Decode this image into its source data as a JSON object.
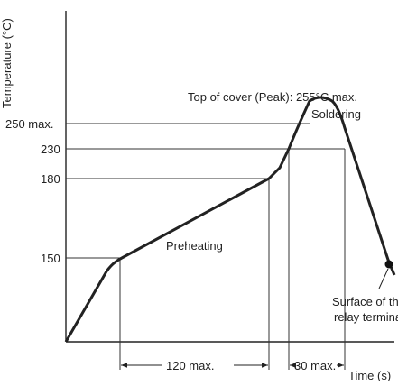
{
  "y_axis_label": "Temperature (°C)",
  "x_axis_label": "Time (s)",
  "temperature_ticks": [
    "250 max.",
    "230",
    "180",
    "150"
  ],
  "annotations": {
    "peak": "Top of cover (Peak): 255°C max.",
    "soldering": "Soldering",
    "preheating": "Preheating",
    "surface_line1": "Surface of the",
    "surface_line2": "relay terminal"
  },
  "durations": {
    "preheat": "120 max.",
    "soldering": "30 max."
  },
  "colors": {
    "curve": "#222222",
    "axis": "#222222",
    "guide": "#333333",
    "text": "#222222"
  }
}
